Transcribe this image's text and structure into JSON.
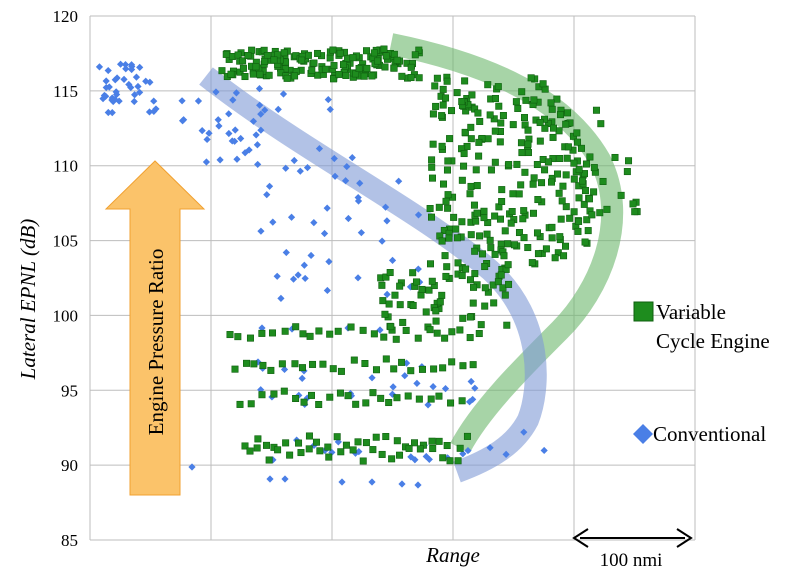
{
  "chart_data": {
    "type": "scatter",
    "title": "",
    "xlabel": "Range",
    "ylabel": "Lateral EPNL (dB)",
    "ylim": [
      85,
      120
    ],
    "yticks": [
      85,
      90,
      95,
      100,
      105,
      110,
      115,
      120
    ],
    "x_ticks_labeled": false,
    "grid": true,
    "legend_position": "right",
    "series": [
      {
        "name": "Variable Cycle Engine",
        "marker": "square",
        "color": "#1e8c1e"
      },
      {
        "name": "Conventional",
        "marker": "diamond",
        "color": "#4a7fe6"
      }
    ],
    "annotations": {
      "arrow_label": "Engine Pressure Ratio",
      "scale_bar_label": "100 nmi"
    },
    "colors": {
      "vce": "#1e8c1e",
      "vce_edge": "#0f5f0f",
      "conventional": "#4a7fe6",
      "vce_band": "#6cb86c",
      "conv_band": "#7f9ad6",
      "arrow_fill": "#fbc36a",
      "arrow_edge": "#f0a030"
    }
  }
}
